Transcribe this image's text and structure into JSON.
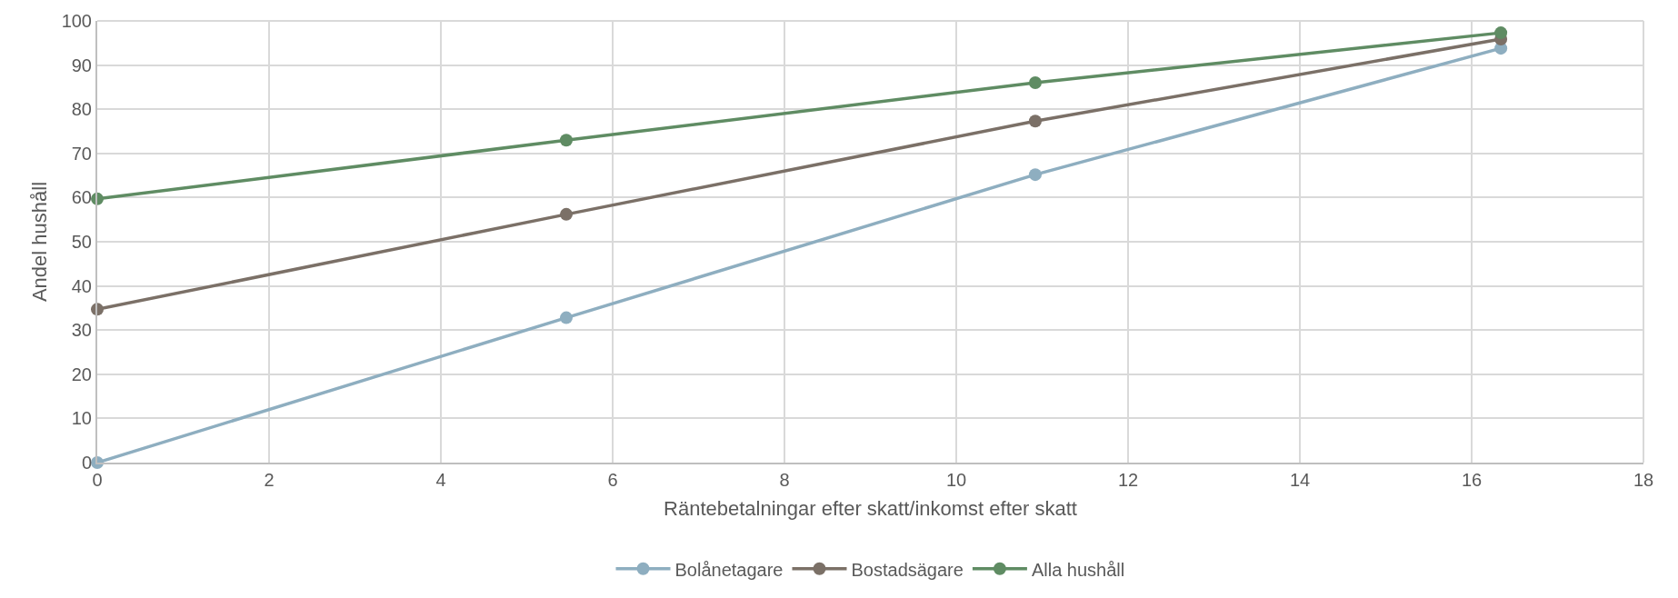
{
  "chart_data": {
    "type": "line",
    "xlabel": "Räntebetalningar efter skatt/inkomst efter skatt",
    "ylabel": "Andel hushåll",
    "x": [
      0,
      5.46,
      10.92,
      16.34
    ],
    "series": [
      {
        "name": "Bolånetagare",
        "color": "#8eaec0",
        "values": [
          0,
          32.8,
          65.2,
          93.8
        ]
      },
      {
        "name": "Bostadsägare",
        "color": "#7b7067",
        "values": [
          34.7,
          56.2,
          77.3,
          95.9
        ]
      },
      {
        "name": "Alla hushåll",
        "color": "#5f8c63",
        "values": [
          59.7,
          73.0,
          86.0,
          97.3
        ]
      }
    ],
    "xlim": [
      0,
      18
    ],
    "xticks": [
      0,
      2,
      4,
      6,
      8,
      10,
      12,
      14,
      16,
      18
    ],
    "ylim": [
      0,
      100
    ],
    "yticks": [
      0,
      10,
      20,
      30,
      40,
      50,
      60,
      70,
      80,
      90,
      100
    ],
    "grid": true,
    "legend": "bottom",
    "marker": "circle",
    "line_style": "solid"
  }
}
